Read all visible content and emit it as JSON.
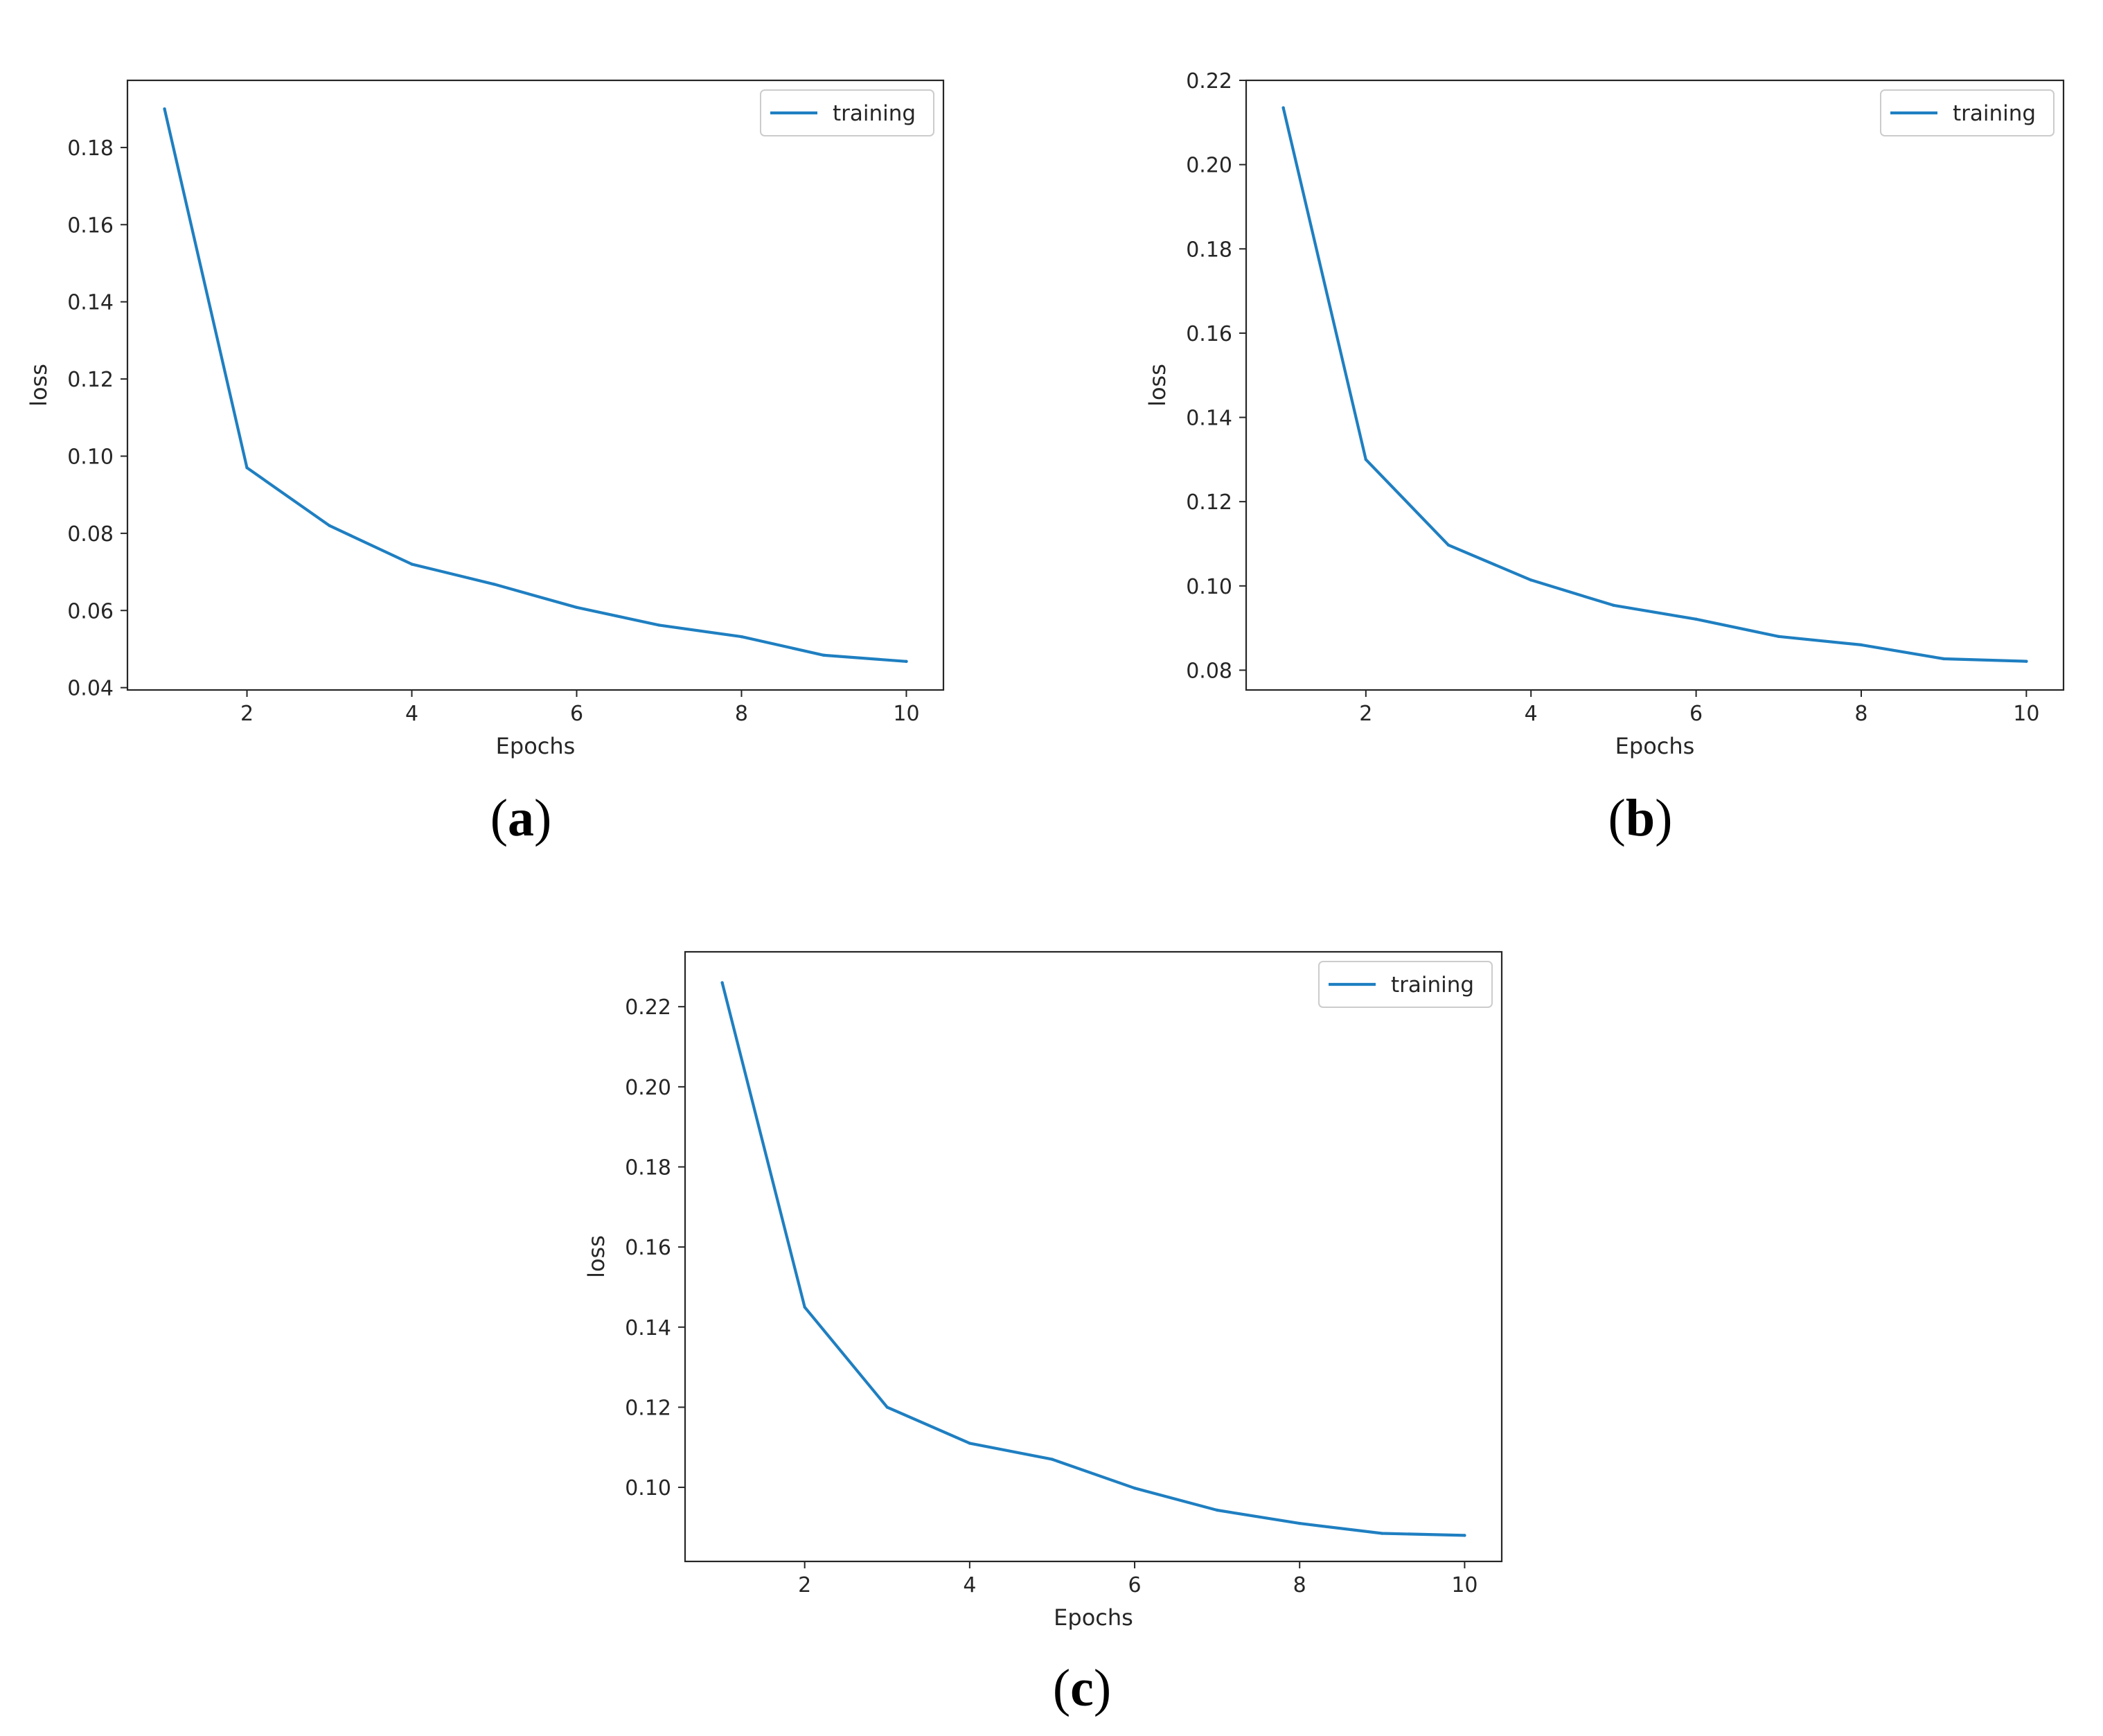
{
  "colors": {
    "series": "#1f7fc1",
    "axes": "#262626"
  },
  "chart_data": [
    {
      "type": "line",
      "panel_label": "a",
      "xlabel": "Epochs",
      "ylabel": "loss",
      "xlim": [
        0.55,
        10.45
      ],
      "ylim": [
        0.0394,
        0.1974
      ],
      "xticks": [
        2,
        4,
        6,
        8,
        10
      ],
      "xtick_labels": [
        "2",
        "4",
        "6",
        "8",
        "10"
      ],
      "yticks": [
        0.04,
        0.06,
        0.08,
        0.1,
        0.12,
        0.14,
        0.16,
        0.18
      ],
      "ytick_labels": [
        "0.04",
        "0.06",
        "0.08",
        "0.10",
        "0.12",
        "0.14",
        "0.16",
        "0.18"
      ],
      "legend_position": "top-right",
      "grid": false,
      "x": [
        1,
        2,
        3,
        4,
        5,
        6,
        7,
        8,
        9,
        10
      ],
      "series": [
        {
          "name": "training",
          "values": [
            0.19,
            0.097,
            0.082,
            0.072,
            0.0668,
            0.0608,
            0.0562,
            0.0532,
            0.0484,
            0.0468
          ]
        }
      ]
    },
    {
      "type": "line",
      "panel_label": "b",
      "xlabel": "Epochs",
      "ylabel": "loss",
      "xlim": [
        0.55,
        10.45
      ],
      "ylim": [
        0.0753,
        0.22
      ],
      "xticks": [
        2,
        4,
        6,
        8,
        10
      ],
      "xtick_labels": [
        "2",
        "4",
        "6",
        "8",
        "10"
      ],
      "yticks": [
        0.08,
        0.1,
        0.12,
        0.14,
        0.16,
        0.18,
        0.2,
        0.22
      ],
      "ytick_labels": [
        "0.08",
        "0.10",
        "0.12",
        "0.14",
        "0.16",
        "0.18",
        "0.20",
        "0.22"
      ],
      "legend_position": "top-right",
      "grid": false,
      "x": [
        1,
        2,
        3,
        4,
        5,
        6,
        7,
        8,
        9,
        10
      ],
      "series": [
        {
          "name": "training",
          "values": [
            0.2135,
            0.13,
            0.1097,
            0.1014,
            0.0954,
            0.0921,
            0.088,
            0.086,
            0.0827,
            0.0821
          ]
        }
      ]
    },
    {
      "type": "line",
      "panel_label": "c",
      "xlabel": "Epochs",
      "ylabel": "loss",
      "xlim": [
        0.55,
        10.45
      ],
      "ylim": [
        0.0815,
        0.2337
      ],
      "xticks": [
        2,
        4,
        6,
        8,
        10
      ],
      "xtick_labels": [
        "2",
        "4",
        "6",
        "8",
        "10"
      ],
      "yticks": [
        0.1,
        0.12,
        0.14,
        0.16,
        0.18,
        0.2,
        0.22
      ],
      "ytick_labels": [
        "0.10",
        "0.12",
        "0.14",
        "0.16",
        "0.18",
        "0.20",
        "0.22"
      ],
      "legend_position": "top-right",
      "grid": false,
      "x": [
        1,
        2,
        3,
        4,
        5,
        6,
        7,
        8,
        9,
        10
      ],
      "series": [
        {
          "name": "training",
          "values": [
            0.226,
            0.145,
            0.12,
            0.111,
            0.107,
            0.0998,
            0.0943,
            0.091,
            0.0885,
            0.088
          ]
        }
      ]
    }
  ]
}
